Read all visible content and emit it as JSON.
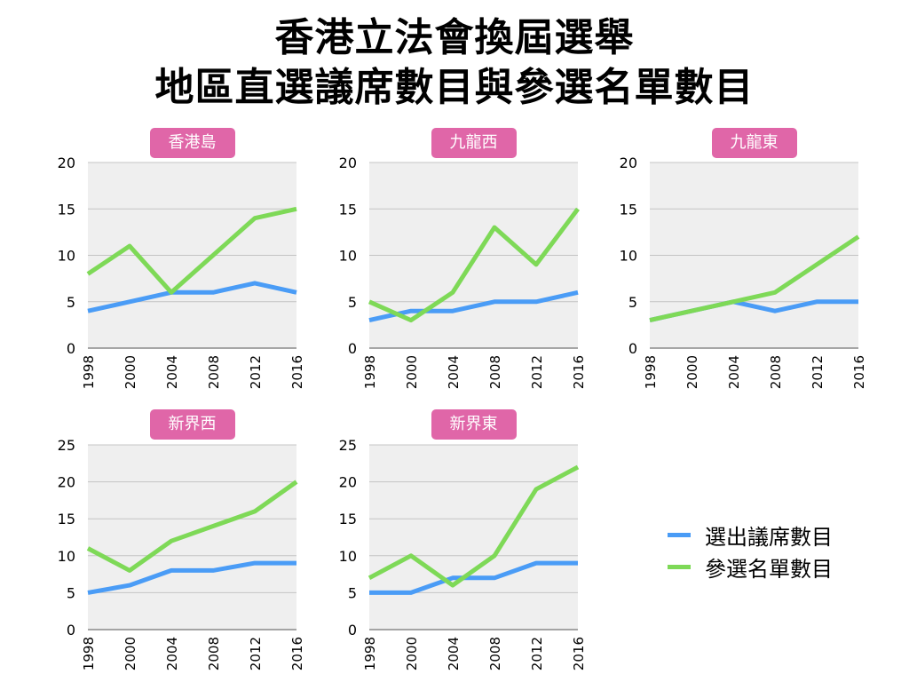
{
  "title_lines": [
    "香港立法會換屆選舉",
    "地區直選議席數目與參選名單數目"
  ],
  "colors": {
    "seats": "#4a9cf6",
    "lists": "#7ed957",
    "badge": "#e066a8",
    "plot_bg": "#efefef"
  },
  "legend": [
    {
      "label": "選出議席數目",
      "color": "#4a9cf6"
    },
    {
      "label": "參選名單數目",
      "color": "#7ed957"
    }
  ],
  "chart_data": [
    {
      "type": "line",
      "title": "香港島",
      "categories": [
        "1998",
        "2000",
        "2004",
        "2008",
        "2012",
        "2016"
      ],
      "ylim": [
        0,
        20
      ],
      "yticks": [
        0,
        5,
        10,
        15,
        20
      ],
      "grid": true,
      "series": [
        {
          "name": "選出議席數目",
          "values": [
            4,
            5,
            6,
            6,
            7,
            6
          ]
        },
        {
          "name": "參選名單數目",
          "values": [
            8,
            11,
            6,
            10,
            14,
            15
          ]
        }
      ]
    },
    {
      "type": "line",
      "title": "九龍西",
      "categories": [
        "1998",
        "2000",
        "2004",
        "2008",
        "2012",
        "2016"
      ],
      "ylim": [
        0,
        20
      ],
      "yticks": [
        0,
        5,
        10,
        15,
        20
      ],
      "grid": true,
      "series": [
        {
          "name": "選出議席數目",
          "values": [
            3,
            4,
            4,
            5,
            5,
            6
          ]
        },
        {
          "name": "參選名單數目",
          "values": [
            5,
            3,
            6,
            13,
            9,
            15
          ]
        }
      ]
    },
    {
      "type": "line",
      "title": "九龍東",
      "categories": [
        "1998",
        "2000",
        "2004",
        "2008",
        "2012",
        "2016"
      ],
      "ylim": [
        0,
        20
      ],
      "yticks": [
        0,
        5,
        10,
        15,
        20
      ],
      "grid": true,
      "series": [
        {
          "name": "選出議席數目",
          "values": [
            3,
            4,
            5,
            4,
            5,
            5
          ]
        },
        {
          "name": "參選名單數目",
          "values": [
            3,
            4,
            5,
            6,
            9,
            12
          ]
        }
      ]
    },
    {
      "type": "line",
      "title": "新界西",
      "categories": [
        "1998",
        "2000",
        "2004",
        "2008",
        "2012",
        "2016"
      ],
      "ylim": [
        0,
        25
      ],
      "yticks": [
        0,
        5,
        10,
        15,
        20,
        25
      ],
      "grid": true,
      "series": [
        {
          "name": "選出議席數目",
          "values": [
            5,
            6,
            8,
            8,
            9,
            9
          ]
        },
        {
          "name": "參選名單數目",
          "values": [
            11,
            8,
            12,
            14,
            16,
            20
          ]
        }
      ]
    },
    {
      "type": "line",
      "title": "新界東",
      "categories": [
        "1998",
        "2000",
        "2004",
        "2008",
        "2012",
        "2016"
      ],
      "ylim": [
        0,
        25
      ],
      "yticks": [
        0,
        5,
        10,
        15,
        20,
        25
      ],
      "grid": true,
      "series": [
        {
          "name": "選出議席數目",
          "values": [
            5,
            5,
            7,
            7,
            9,
            9
          ]
        },
        {
          "name": "參選名單數目",
          "values": [
            7,
            10,
            6,
            10,
            19,
            22
          ]
        }
      ]
    }
  ]
}
